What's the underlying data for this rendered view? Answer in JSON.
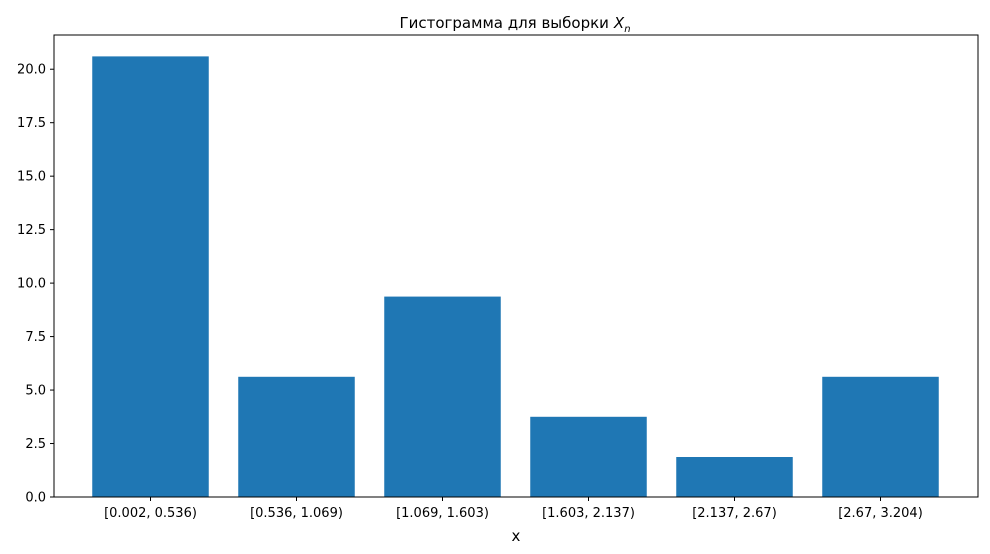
{
  "chart_data": {
    "type": "bar",
    "title": "Гистограмма для выборки",
    "title_symbol": "X",
    "title_subscript": "n",
    "xlabel": "x",
    "ylabel": "",
    "ylim": [
      0,
      21.6
    ],
    "yticks": [
      "0.0",
      "2.5",
      "5.0",
      "7.5",
      "10.0",
      "12.5",
      "15.0",
      "17.5",
      "20.0"
    ],
    "categories": [
      "[0.002, 0.536)",
      "[0.536, 1.069)",
      "[1.069, 1.603)",
      "[1.603, 2.137)",
      "[2.137, 2.67)",
      "[2.67, 3.204)"
    ],
    "values": [
      20.6,
      5.62,
      9.37,
      3.75,
      1.87,
      5.62
    ],
    "bar_color": "#1f77b4",
    "grid": false,
    "legend": "none"
  }
}
